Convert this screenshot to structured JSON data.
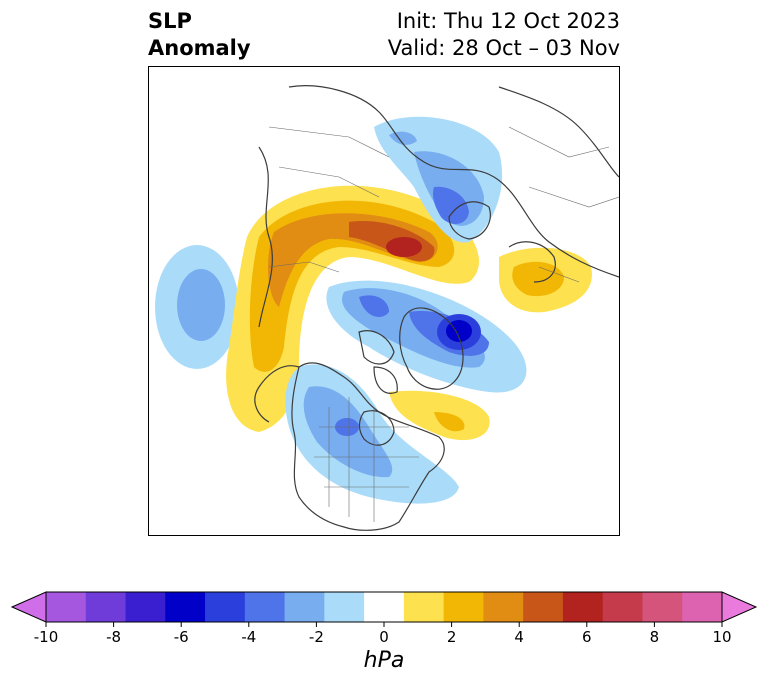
{
  "header": {
    "title_left": "SLP\nAnomaly",
    "title_right": "Init: Thu 12 Oct 2023\nValid: 28 Oct – 03 Nov"
  },
  "colorbar": {
    "unit": "hPa",
    "ticks": [
      "-10",
      "-8",
      "-6",
      "-4",
      "-2",
      "0",
      "2",
      "4",
      "6",
      "8",
      "10"
    ],
    "colors": [
      "#cf6ee8",
      "#a557e0",
      "#6f3cd9",
      "#3a1fd0",
      "#0000c8",
      "#2a3fdc",
      "#4f73e8",
      "#78adf0",
      "#aadcfa",
      "#ffffff",
      "#fde14e",
      "#f2b705",
      "#e18c13",
      "#c85619",
      "#b2221f",
      "#c53b4c",
      "#d4547c",
      "#dd63b0",
      "#ea7bdd"
    ],
    "extend": "both"
  },
  "map": {
    "projection": "north-polar-stereographic",
    "field": "SLP anomaly"
  }
}
